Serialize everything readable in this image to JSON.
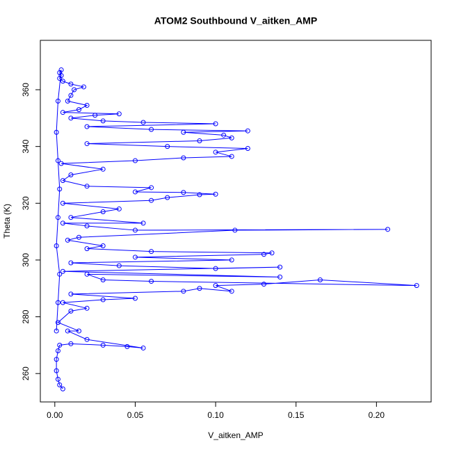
{
  "chart_data": {
    "type": "line",
    "title": "ATOM2 Southbound V_aitken_AMP",
    "x_label": "V_aitken_AMP",
    "y_label": "Theta (K)",
    "xlim": [
      -0.009,
      0.234
    ],
    "ylim": [
      250,
      377.4
    ],
    "xticks": [
      {
        "value": 0,
        "label": "0.00"
      },
      0.05,
      {
        "value": 0.1,
        "label": "0.10"
      },
      0.15,
      {
        "value": 0.2,
        "label": "0.20"
      }
    ],
    "yticks": [
      260,
      280,
      300,
      320,
      340,
      360
    ],
    "x": [
      0.005,
      0.003,
      0.002,
      0.001,
      0.001,
      0.002,
      0.003,
      0.01,
      0.03,
      0.045,
      0.055,
      0.02,
      0.008,
      0.015,
      0.002,
      0.01,
      0.02,
      0.005,
      0.03,
      0.05,
      0.01,
      0.08,
      0.09,
      0.11,
      0.1,
      0.13,
      0.165,
      0.225,
      0.06,
      0.03,
      0.02,
      0.14,
      0.005,
      0.14,
      0.1,
      0.04,
      0.01,
      0.11,
      0.05,
      0.13,
      0.135,
      0.06,
      0.02,
      0.03,
      0.008,
      0.015,
      0.112,
      0.207,
      0.05,
      0.02,
      0.005,
      0.055,
      0.01,
      0.03,
      0.04,
      0.005,
      0.06,
      0.07,
      0.09,
      0.1,
      0.08,
      0.05,
      0.06,
      0.02,
      0.005,
      0.01,
      0.03,
      0.004,
      0.05,
      0.08,
      0.11,
      0.1,
      0.12,
      0.07,
      0.02,
      0.09,
      0.11,
      0.105,
      0.08,
      0.12,
      0.06,
      0.02,
      0.1,
      0.055,
      0.03,
      0.01,
      0.025,
      0.04,
      0.005,
      0.015,
      0.02,
      0.008,
      0.01,
      0.012,
      0.018,
      0.01,
      0.005,
      0.003,
      0.004,
      0.003,
      0.004,
      0.002,
      0.001,
      0.002,
      0.003,
      0.002,
      0.001,
      0.003,
      0.002,
      0.001
    ],
    "series": [
      {
        "name": "V_aitken_AMP",
        "color": "#0000ff",
        "values": [
          254.6,
          256,
          258,
          261,
          265,
          268,
          270,
          270.5,
          270,
          269.5,
          269,
          272,
          275,
          275,
          278,
          282,
          283,
          285,
          286,
          286.5,
          288,
          289,
          290,
          289,
          291,
          291.5,
          293,
          291,
          292.5,
          293,
          295,
          294,
          296,
          297.5,
          297,
          298,
          299,
          300,
          301,
          302,
          302.5,
          303,
          304,
          305,
          307,
          308,
          310.5,
          310.8,
          310.5,
          312,
          313,
          313,
          315,
          317,
          318,
          320,
          321,
          322,
          323,
          323.2,
          323.8,
          324,
          325.5,
          326,
          328,
          330,
          332,
          334,
          335,
          336,
          336.5,
          338,
          339.3,
          340,
          341,
          342,
          343,
          344,
          345,
          345.5,
          346,
          347,
          348,
          348.5,
          349,
          350,
          351,
          351.5,
          352,
          353,
          354.5,
          356,
          358,
          360,
          361,
          362,
          363,
          364,
          365,
          366,
          367,
          356,
          345,
          335,
          325,
          315,
          305,
          295,
          285,
          275
        ]
      }
    ]
  }
}
